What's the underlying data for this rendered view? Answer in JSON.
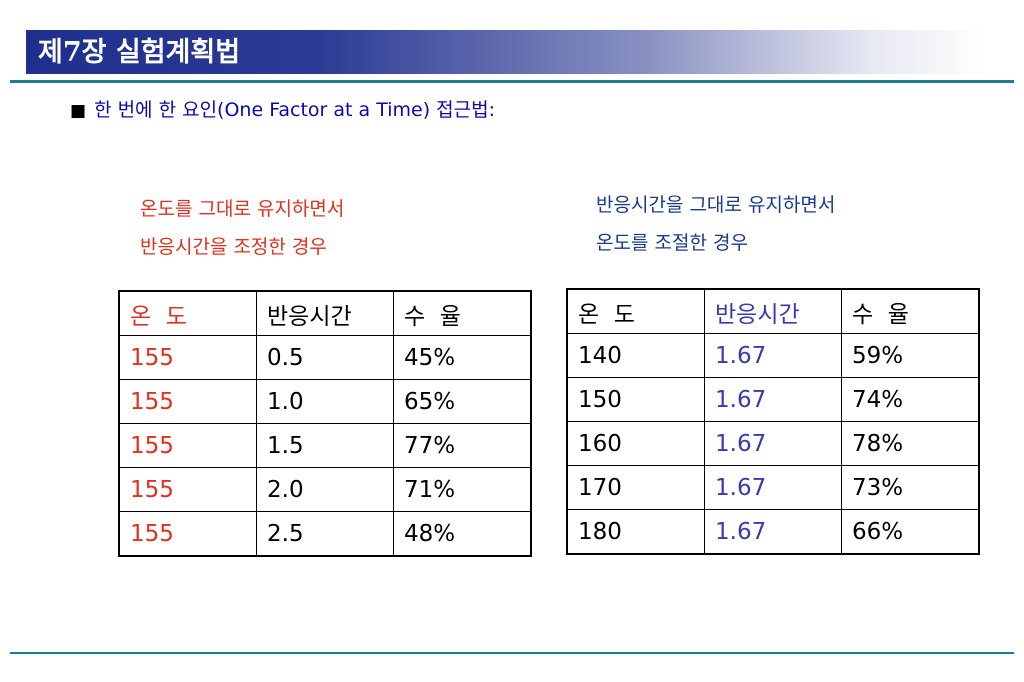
{
  "header": {
    "title": "제7장 실험계획법"
  },
  "bullet": {
    "mark": "■",
    "text": "한 번에 한 요인(One Factor at a Time) 접근법:"
  },
  "left_panel": {
    "caption_line1": "온도를 그대로 유지하면서",
    "caption_line2": "반응시간을 조정한 경우",
    "columns": [
      "온  도",
      "반응시간",
      "수  율"
    ],
    "rows": [
      [
        "155",
        "0.5",
        "45%"
      ],
      [
        "155",
        "1.0",
        "65%"
      ],
      [
        "155",
        "1.5",
        "77%"
      ],
      [
        "155",
        "2.0",
        "71%"
      ],
      [
        "155",
        "2.5",
        "48%"
      ]
    ]
  },
  "right_panel": {
    "caption_line1": "반응시간을 그대로 유지하면서",
    "caption_line2": "온도를 조절한 경우",
    "columns": [
      "온  도",
      "반응시간",
      "수  율"
    ],
    "rows": [
      [
        "140",
        "1.67",
        "59%"
      ],
      [
        "150",
        "1.67",
        "74%"
      ],
      [
        "160",
        "1.67",
        "78%"
      ],
      [
        "170",
        "1.67",
        "73%"
      ],
      [
        "180",
        "1.67",
        "66%"
      ]
    ]
  },
  "colors": {
    "title_bar": "#1f2f8e",
    "rule": "#1a7f95",
    "highlight_red": "#e0301e",
    "highlight_blue": "#3a3ab0",
    "bullet_text": "#0a0aa8"
  }
}
